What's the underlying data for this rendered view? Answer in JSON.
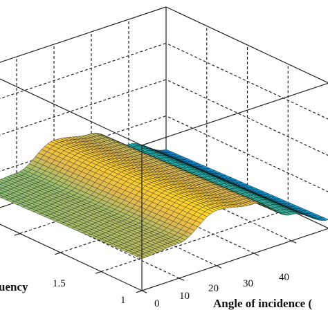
{
  "chart_data": {
    "type": "surface3d",
    "title": "",
    "xlabel": "Angle of incidence (",
    "ylabel": "uency",
    "zlabel": "",
    "x_ticks": [
      "0",
      "10",
      "20",
      "30",
      "40"
    ],
    "y_ticks": [
      "1",
      "1.5"
    ],
    "x_range": [
      0,
      50
    ],
    "y_range": [
      1,
      2
    ],
    "grid": true,
    "colormap": "parula",
    "surface": {
      "x": [
        0,
        10,
        20,
        30,
        40,
        50
      ],
      "z_profile": [
        0.18,
        0.2,
        0.34,
        0.3,
        0.14,
        0.02
      ]
    }
  }
}
